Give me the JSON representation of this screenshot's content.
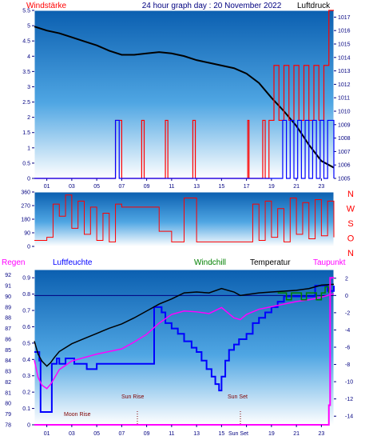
{
  "chart_data": [
    {
      "type": "line",
      "title": "24 hour graph day : 20 November 2022",
      "left_label": "Windstärke",
      "right_label": "Luftdruck",
      "x_ticks": [
        "01",
        "03",
        "05",
        "07",
        "09",
        "11",
        "13",
        "15",
        "17",
        "19",
        "21",
        "23"
      ],
      "y_left_ticks": [
        "0",
        "0.5",
        "1",
        "1.5",
        "2",
        "2.5",
        "3",
        "3.5",
        "4",
        "4.5",
        "5",
        "5.5"
      ],
      "y_right_ticks": [
        "1005",
        "1006",
        "1007",
        "1008",
        "1009",
        "1010",
        "1011",
        "1012",
        "1013",
        "1014",
        "1015",
        "1016",
        "1017"
      ],
      "ylim_left": [
        0,
        5.5
      ],
      "ylim_right": [
        1005,
        1017.5
      ],
      "xlim_hours": [
        0,
        24
      ],
      "series": [
        {
          "name": "Luftdruck",
          "color": "#000000",
          "x": [
            0,
            1,
            2,
            3,
            4,
            5,
            6,
            7,
            8,
            9,
            10,
            11,
            12,
            13,
            14,
            15,
            16,
            17,
            18,
            19,
            20,
            21,
            22,
            23,
            24
          ],
          "y": [
            1016.3,
            1016.0,
            1015.8,
            1015.5,
            1015.2,
            1014.9,
            1014.5,
            1014.2,
            1014.2,
            1014.3,
            1014.4,
            1014.3,
            1014.1,
            1013.8,
            1013.6,
            1013.4,
            1013.2,
            1012.8,
            1012.1,
            1011.0,
            1010.0,
            1008.9,
            1007.5,
            1006.3,
            1005.8
          ]
        },
        {
          "name": "Windspitzen",
          "color": "#ff0000",
          "x": [
            0,
            6.4,
            6.5,
            6.9,
            7.0,
            8.5,
            8.6,
            8.8,
            10.4,
            10.5,
            10.7,
            12.6,
            12.7,
            12.9,
            17.0,
            17.1,
            17.2,
            18.2,
            18.3,
            18.5,
            18.8,
            19.2,
            19.6,
            20.0,
            20.4,
            20.8,
            21.2,
            21.6,
            22.0,
            22.4,
            22.8,
            23.2,
            23.6,
            24
          ],
          "y": [
            0,
            0,
            1.9,
            1.9,
            0,
            0,
            1.9,
            0,
            0,
            1.9,
            0,
            0,
            1.9,
            0,
            0,
            1.9,
            0,
            0,
            1.9,
            0,
            1.9,
            3.7,
            1.9,
            3.7,
            1.9,
            3.7,
            1.9,
            3.7,
            1.9,
            3.7,
            1.9,
            3.7,
            5.5,
            5.5
          ]
        },
        {
          "name": "Windstärke",
          "color": "#0000ff",
          "x": [
            0,
            6.4,
            6.5,
            6.7,
            6.8,
            19.8,
            19.9,
            20.2,
            20.5,
            20.8,
            21.1,
            21.4,
            21.7,
            22.0,
            22.3,
            22.6,
            22.9,
            23.2,
            23.5,
            24
          ],
          "y": [
            0,
            0,
            1.9,
            1.9,
            0,
            0,
            1.9,
            0,
            1.9,
            0,
            1.9,
            0,
            1.9,
            0,
            1.9,
            0,
            1.9,
            0,
            1.9,
            0
          ]
        }
      ]
    },
    {
      "type": "line",
      "left_label": "",
      "right_label": "N W S O N",
      "compass_labels": [
        "N",
        "W",
        "S",
        "O",
        "N"
      ],
      "y_left_ticks": [
        "0",
        "90",
        "180",
        "270",
        "360"
      ],
      "ylim": [
        0,
        360
      ],
      "xlim_hours": [
        0,
        24
      ],
      "series": [
        {
          "name": "Windrichtung",
          "color": "#ff0000",
          "x": [
            0,
            1,
            1.5,
            2,
            2.5,
            3,
            3.5,
            4,
            4.5,
            5,
            5.5,
            6,
            6.5,
            7,
            8,
            9,
            10,
            11,
            12,
            13,
            14,
            15,
            16,
            17,
            17.5,
            18,
            18.5,
            19,
            19.5,
            20,
            20.5,
            21,
            21.5,
            22,
            22.5,
            23,
            23.5,
            24
          ],
          "y": [
            40,
            60,
            280,
            200,
            340,
            120,
            300,
            80,
            260,
            40,
            220,
            30,
            280,
            260,
            260,
            260,
            100,
            30,
            320,
            30,
            30,
            30,
            30,
            30,
            280,
            40,
            300,
            60,
            250,
            30,
            320,
            80,
            290,
            50,
            310,
            70,
            300,
            60
          ]
        }
      ]
    },
    {
      "type": "line",
      "legend": [
        "Regen",
        "Luftfeuchte",
        "Windchill",
        "Temperatur",
        "Taupunkt"
      ],
      "annotations": [
        "Moon Rise",
        "Sun Rise",
        "Sun Set"
      ],
      "x_ticks": [
        "01",
        "03",
        "05",
        "07",
        "09",
        "11",
        "13",
        "15",
        "17",
        "19",
        "21",
        "23"
      ],
      "x_tick_extra": "Sun Set",
      "y_left_outer_ticks": [
        "78",
        "79",
        "80",
        "81",
        "82",
        "83",
        "84",
        "85",
        "86",
        "87",
        "88",
        "89",
        "90",
        "91",
        "92"
      ],
      "y_left_inner_ticks": [
        "0",
        "0.1",
        "0.2",
        "0.3",
        "0.4",
        "0.5",
        "0.6",
        "0.7",
        "0.8",
        "0.9"
      ],
      "y_right_ticks": [
        "2",
        "0",
        "-2",
        "-4",
        "-6",
        "-8",
        "-10",
        "-12",
        "-14"
      ],
      "ylim_humidity": [
        78,
        92.5
      ],
      "ylim_temp": [
        -15,
        3
      ],
      "xlim_hours": [
        0,
        24
      ],
      "series": [
        {
          "name": "Luftfeuchte",
          "color": "#0000ff",
          "x": [
            0,
            0.4,
            0.5,
            1.2,
            1.4,
            1.8,
            2.0,
            2.4,
            2.5,
            3.0,
            3.2,
            4.0,
            4.2,
            5.0,
            9.4,
            9.6,
            10.0,
            10.2,
            10.5,
            11.0,
            11.5,
            12.0,
            12.6,
            13.0,
            13.4,
            13.8,
            14.2,
            14.5,
            14.8,
            15.0,
            15.3,
            15.6,
            16.0,
            16.4,
            17.0,
            17.5,
            18.0,
            18.5,
            19.0,
            19.5,
            20.0,
            20.5,
            21.0,
            21.5,
            22.0,
            22.5,
            23.0,
            23.5,
            24
          ],
          "y": [
            84.8,
            84.0,
            79.2,
            79.2,
            83.7,
            84.2,
            83.7,
            83.7,
            84.2,
            84.2,
            83.7,
            83.7,
            83.2,
            83.7,
            83.7,
            89.0,
            89.0,
            88.5,
            87.5,
            87.0,
            86.5,
            85.8,
            85.2,
            84.8,
            84.0,
            83.2,
            82.5,
            81.8,
            81.2,
            82.5,
            84.0,
            85.0,
            85.5,
            86.0,
            86.5,
            87.5,
            88.0,
            88.5,
            89.0,
            89.5,
            90.0,
            90.0,
            90.0,
            90.0,
            90.0,
            91.0,
            91.0,
            90.5,
            91.0
          ]
        },
        {
          "name": "Temperatur",
          "color": "#000000",
          "x": [
            0,
            0.3,
            0.6,
            1.0,
            1.3,
            1.6,
            2.0,
            3.0,
            4.0,
            5.0,
            6.0,
            7.0,
            8.0,
            9.0,
            10.0,
            11.0,
            12.0,
            13.0,
            14.0,
            15.0,
            16.0,
            16.5,
            17.0,
            18.0,
            19.0,
            20.0,
            21.0,
            22.0,
            23.0,
            24
          ],
          "y": [
            -5.3,
            -6.8,
            -7.6,
            -8.2,
            -7.8,
            -7.2,
            -6.5,
            -5.6,
            -5.0,
            -4.4,
            -3.8,
            -3.3,
            -2.6,
            -1.8,
            -1.0,
            -0.4,
            0.3,
            0.4,
            0.3,
            0.8,
            0.4,
            0.0,
            0.1,
            0.3,
            0.4,
            0.5,
            0.6,
            0.8,
            1.2,
            1.3
          ]
        },
        {
          "name": "Taupunkt",
          "color": "#ff00ff",
          "x": [
            0,
            0.3,
            0.6,
            1.0,
            1.3,
            1.6,
            2.0,
            3.0,
            4.0,
            5.0,
            6.0,
            7.0,
            8.0,
            9.0,
            10.0,
            11.0,
            12.0,
            13.0,
            14.0,
            15.0,
            16.0,
            16.5,
            17.0,
            18.0,
            19.0,
            20.0,
            21.0,
            22.0,
            23.0,
            24
          ],
          "y": [
            -7.5,
            -9.5,
            -10.4,
            -10.8,
            -10.3,
            -9.6,
            -8.6,
            -7.6,
            -7.2,
            -6.8,
            -6.5,
            -6.2,
            -5.4,
            -4.5,
            -3.2,
            -2.2,
            -1.8,
            -1.9,
            -2.1,
            -1.4,
            -2.6,
            -2.8,
            -2.2,
            -1.6,
            -1.3,
            -1.0,
            -0.7,
            -0.5,
            -0.2,
            0.2
          ]
        },
        {
          "name": "Windchill",
          "color": "#008000",
          "x": [
            19.5,
            20.0,
            20.2,
            20.6,
            21.0,
            21.4,
            21.8,
            22.2,
            22.6,
            23.0,
            23.3,
            23.6
          ],
          "y": [
            0.3,
            0.3,
            -0.5,
            0.3,
            0.3,
            -0.5,
            0.3,
            0.3,
            -0.5,
            0.3,
            1.0,
            0.3
          ]
        },
        {
          "name": "Regen",
          "color": "#ff00ff",
          "x": [
            0,
            23.5,
            23.6,
            23.7,
            24
          ],
          "y": [
            0,
            0,
            0.12,
            0.9,
            0.9
          ]
        }
      ],
      "reference_line_temp": 0
    }
  ]
}
